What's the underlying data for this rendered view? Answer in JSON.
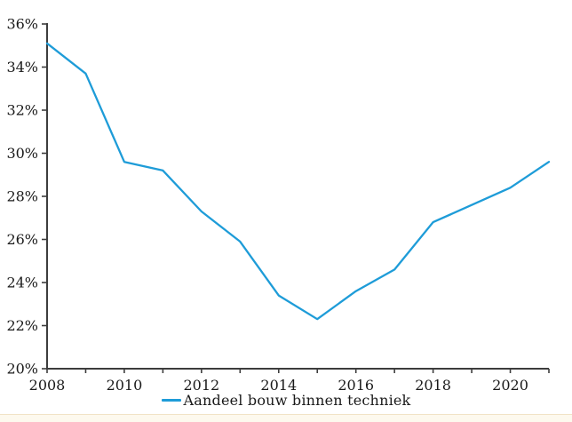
{
  "chart_data": {
    "type": "line",
    "title": "",
    "xlabel": "",
    "ylabel": "",
    "x": [
      2008,
      2009,
      2010,
      2011,
      2012,
      2013,
      2014,
      2015,
      2016,
      2017,
      2018,
      2019,
      2020,
      2021
    ],
    "series": [
      {
        "name": "Aandeel bouw binnen techniek",
        "values": [
          35.1,
          33.7,
          29.6,
          29.2,
          27.3,
          25.9,
          23.4,
          22.3,
          23.6,
          24.6,
          26.8,
          27.6,
          28.4,
          29.6
        ]
      }
    ],
    "ylim": [
      20,
      36
    ],
    "y_tick_step": 2,
    "y_tick_labels": [
      "20%",
      "22%",
      "24%",
      "26%",
      "28%",
      "30%",
      "32%",
      "34%",
      "36%"
    ],
    "x_label_years": [
      2008,
      2010,
      2012,
      2014,
      2016,
      2018,
      2020
    ],
    "x_tick_every_year": true,
    "grid": false,
    "legend_position": "bottom-center",
    "colors": {
      "line": "#1E9CD8",
      "axis": "#3D3D3D",
      "text": "#1A1A1A"
    }
  },
  "legend": {
    "label": "Aandeel bouw binnen techniek"
  },
  "footer_strip": {
    "fill": "#FDF9EE",
    "border": "#F1E3C6"
  }
}
